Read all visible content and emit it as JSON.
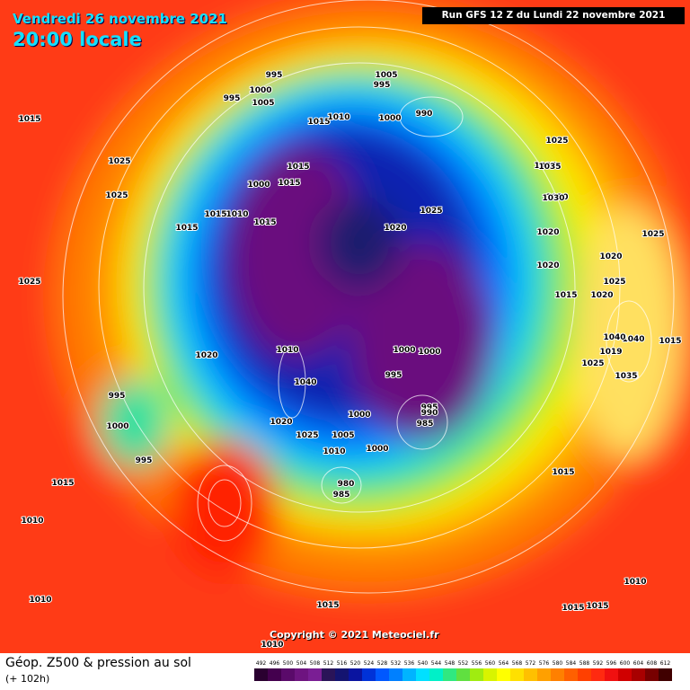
{
  "header": {
    "date": "Vendredi 26 novembre 2021",
    "time": "20:00 locale",
    "run": "Run GFS 12 Z du Lundi 22 novembre 2021"
  },
  "copyright": "Copyright © 2021 Meteociel.fr",
  "legend": {
    "title": "Géop. Z500 & pression au sol",
    "lead": "(+ 102h)",
    "levels": [
      492,
      496,
      500,
      504,
      508,
      512,
      516,
      520,
      524,
      528,
      532,
      536,
      540,
      544,
      548,
      552,
      556,
      560,
      564,
      568,
      572,
      576,
      580,
      584,
      588,
      592,
      596,
      600,
      604,
      608,
      612
    ],
    "colors": [
      "#2a0030",
      "#44004e",
      "#5a0a6a",
      "#6e1480",
      "#7a1e94",
      "#2a1458",
      "#141470",
      "#0a14a0",
      "#0032d8",
      "#0058ff",
      "#0080ff",
      "#00b4ff",
      "#00e0ff",
      "#00f0c8",
      "#30e880",
      "#60e040",
      "#a0ec10",
      "#d8f400",
      "#ffff00",
      "#ffe000",
      "#ffc000",
      "#ffa000",
      "#ff8000",
      "#ff6000",
      "#ff4000",
      "#ff2a10",
      "#f01010",
      "#d00000",
      "#a80000",
      "#780000",
      "#400000"
    ]
  },
  "isobars": [
    995,
    1000,
    1005,
    995,
    1005,
    995,
    990,
    1000,
    1015,
    1010,
    1015,
    1015,
    1015,
    1025,
    1035,
    1025,
    1030,
    1020,
    1025,
    1020,
    1015,
    1020,
    1025,
    1040,
    1035,
    1015,
    1025,
    1015,
    1000,
    1015,
    1010,
    1015,
    1025,
    1000,
    995,
    985,
    1000,
    1000,
    995,
    990,
    980,
    985,
    1020,
    1010,
    1040,
    1025,
    1005,
    1010,
    1025,
    1015,
    1000,
    1020,
    1020,
    995,
    1000,
    995,
    1019,
    1015,
    1035,
    1040,
    1030,
    1025,
    1010,
    1015,
    1010,
    1015,
    1015,
    1010,
    1010,
    1020,
    1035
  ]
}
